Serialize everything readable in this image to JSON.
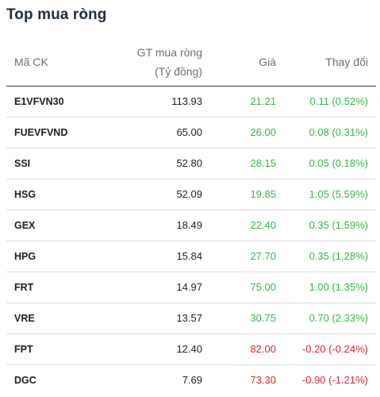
{
  "title": "Top mua ròng",
  "headers": {
    "code": "Mã CK",
    "value_line1": "GT mua ròng",
    "value_line2": "(Tỷ đồng)",
    "price": "Giá",
    "change": "Thay đổi"
  },
  "colors": {
    "up": "#39b54a",
    "down": "#e0262b"
  },
  "rows": [
    {
      "code": "E1VFVN30",
      "value": "113.93",
      "price": "21.21",
      "change": "0.11 (0.52%)",
      "trend": "up"
    },
    {
      "code": "FUEVFVND",
      "value": "65.00",
      "price": "26.00",
      "change": "0.08 (0.31%)",
      "trend": "up"
    },
    {
      "code": "SSI",
      "value": "52.80",
      "price": "28.15",
      "change": "0.05 (0.18%)",
      "trend": "up"
    },
    {
      "code": "HSG",
      "value": "52.09",
      "price": "19.85",
      "change": "1.05 (5.59%)",
      "trend": "up"
    },
    {
      "code": "GEX",
      "value": "18.49",
      "price": "22.40",
      "change": "0.35 (1.59%)",
      "trend": "up"
    },
    {
      "code": "HPG",
      "value": "15.84",
      "price": "27.70",
      "change": "0.35 (1.28%)",
      "trend": "up"
    },
    {
      "code": "FRT",
      "value": "14.97",
      "price": "75.00",
      "change": "1.00 (1.35%)",
      "trend": "up"
    },
    {
      "code": "VRE",
      "value": "13.57",
      "price": "30.75",
      "change": "0.70 (2.33%)",
      "trend": "up"
    },
    {
      "code": "FPT",
      "value": "12.40",
      "price": "82.00",
      "change": "-0.20 (-0.24%)",
      "trend": "down"
    },
    {
      "code": "DGC",
      "value": "7.69",
      "price": "73.30",
      "change": "-0.90 (-1.21%)",
      "trend": "down"
    }
  ]
}
